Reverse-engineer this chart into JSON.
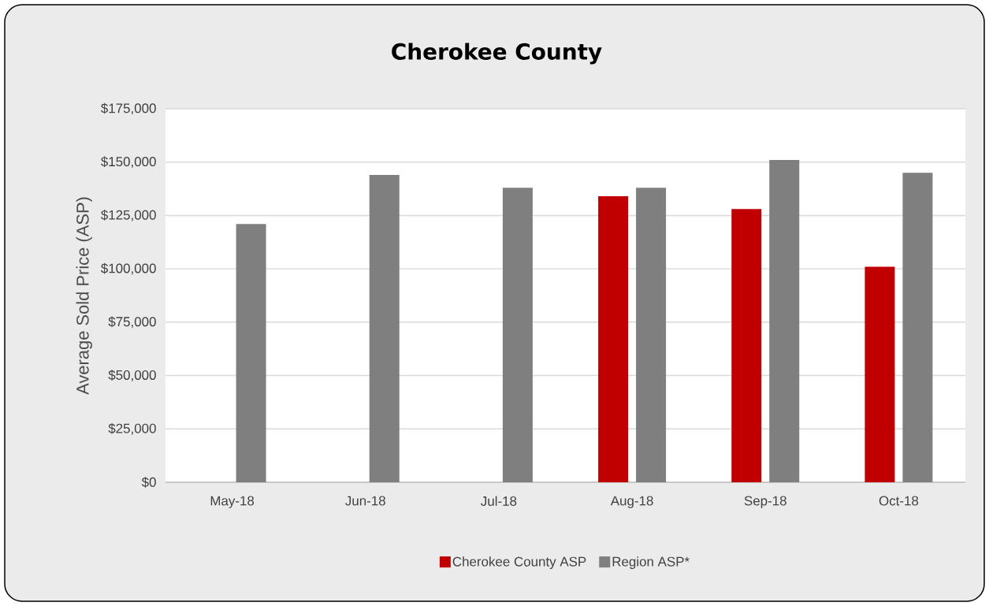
{
  "chart_data": {
    "type": "bar",
    "title": "Cherokee County",
    "ylabel": "Average Sold Price (ASP)",
    "categories": [
      "May-18",
      "Jun-18",
      "Jul-18",
      "Aug-18",
      "Sep-18",
      "Oct-18"
    ],
    "series": [
      {
        "name": "Cherokee County ASP",
        "color": "#c00000",
        "values": [
          null,
          null,
          null,
          134000,
          128000,
          101000
        ]
      },
      {
        "name": "Region ASP*",
        "color": "#7f7f7f",
        "values": [
          121000,
          144000,
          138000,
          138000,
          151000,
          145000
        ]
      }
    ],
    "ylim": [
      0,
      175000
    ],
    "yticks": [
      {
        "value": 0,
        "label": "$0"
      },
      {
        "value": 25000,
        "label": "$25,000"
      },
      {
        "value": 50000,
        "label": "$50,000"
      },
      {
        "value": 75000,
        "label": "$75,000"
      },
      {
        "value": 100000,
        "label": "$100,000"
      },
      {
        "value": 125000,
        "label": "$125,000"
      },
      {
        "value": 150000,
        "label": "$150,000"
      },
      {
        "value": 175000,
        "label": "$175,000"
      }
    ],
    "grid": "y",
    "legend": "bottom"
  }
}
